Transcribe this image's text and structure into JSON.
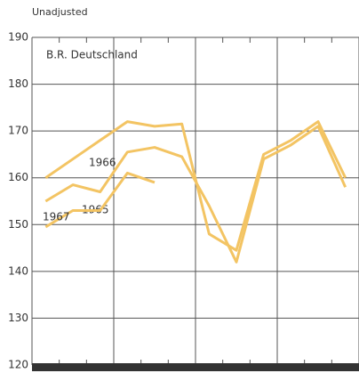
{
  "chart_data": {
    "type": "line",
    "title": "Unadjusted",
    "subtitle": "B.R. Deutschland",
    "categories": [
      null,
      null,
      null,
      null,
      null,
      null,
      null,
      null,
      null,
      null,
      null,
      null
    ],
    "series": [
      {
        "name": "1966",
        "color": "#f3c463",
        "values": [
          160,
          164,
          168,
          172,
          171,
          171.5,
          148,
          144.5,
          165,
          168,
          172,
          160
        ]
      },
      {
        "name": "1965",
        "color": "#f3c463",
        "values": [
          155,
          158.5,
          157,
          165.5,
          166.5,
          164.5,
          154,
          142,
          164,
          167,
          171,
          158
        ]
      },
      {
        "name": "1967",
        "color": "#f3c463",
        "values": [
          149.5,
          153,
          153,
          161,
          159,
          null,
          null,
          null,
          null,
          null,
          null,
          null
        ]
      }
    ],
    "ylim": [
      120,
      190
    ],
    "yticks": [
      120,
      130,
      140,
      150,
      160,
      170,
      180,
      190
    ],
    "grid": true
  }
}
